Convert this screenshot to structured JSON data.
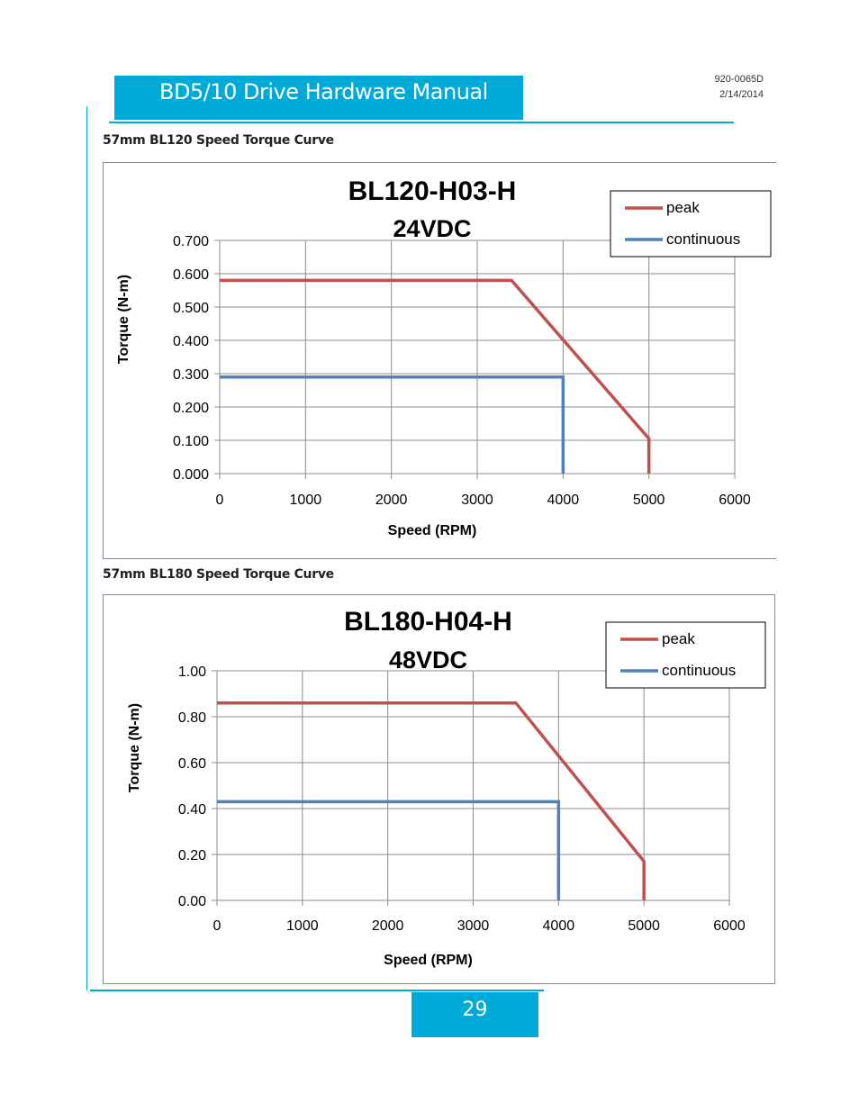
{
  "header": {
    "title": "BD5/10 Drive Hardware Manual",
    "doc_number": "920-0065D",
    "doc_date": "2/14/2014"
  },
  "sections": [
    {
      "title": "57mm BL120 Speed Torque Curve"
    },
    {
      "title": "57mm BL180 Speed Torque Curve"
    }
  ],
  "footer": {
    "page_number": "29"
  },
  "colors": {
    "accent": "#00aad8",
    "peak": "#c0504d",
    "continuous": "#4f81bd"
  },
  "chart_data": [
    {
      "type": "line",
      "title": "BL120-H03-H",
      "subtitle": "24VDC",
      "xlabel": "Speed (RPM)",
      "ylabel": "Torque (N-m)",
      "xlim": [
        0,
        6000
      ],
      "ylim": [
        0,
        0.7
      ],
      "x_ticks": [
        "0",
        "1000",
        "2000",
        "3000",
        "4000",
        "5000",
        "6000"
      ],
      "y_ticks": [
        "0.000",
        "0.100",
        "0.200",
        "0.300",
        "0.400",
        "0.500",
        "0.600",
        "0.700"
      ],
      "grid": true,
      "legend_position": "top-right",
      "series": [
        {
          "name": "peak",
          "x": [
            0,
            3400,
            5000,
            5000
          ],
          "y": [
            0.58,
            0.58,
            0.105,
            0
          ]
        },
        {
          "name": "continuous",
          "x": [
            0,
            4000,
            4000
          ],
          "y": [
            0.29,
            0.29,
            0
          ]
        }
      ]
    },
    {
      "type": "line",
      "title": "BL180-H04-H",
      "subtitle": "48VDC",
      "xlabel": "Speed (RPM)",
      "ylabel": "Torque (N-m)",
      "xlim": [
        0,
        6000
      ],
      "ylim": [
        0,
        1.0
      ],
      "x_ticks": [
        "0",
        "1000",
        "2000",
        "3000",
        "4000",
        "5000",
        "6000"
      ],
      "y_ticks": [
        "0.00",
        "0.20",
        "0.40",
        "0.60",
        "0.80",
        "1.00"
      ],
      "grid": true,
      "legend_position": "top-right",
      "series": [
        {
          "name": "peak",
          "x": [
            0,
            3500,
            5000,
            5000
          ],
          "y": [
            0.86,
            0.86,
            0.17,
            0
          ]
        },
        {
          "name": "continuous",
          "x": [
            0,
            4000,
            4000
          ],
          "y": [
            0.43,
            0.43,
            0
          ]
        }
      ]
    }
  ]
}
